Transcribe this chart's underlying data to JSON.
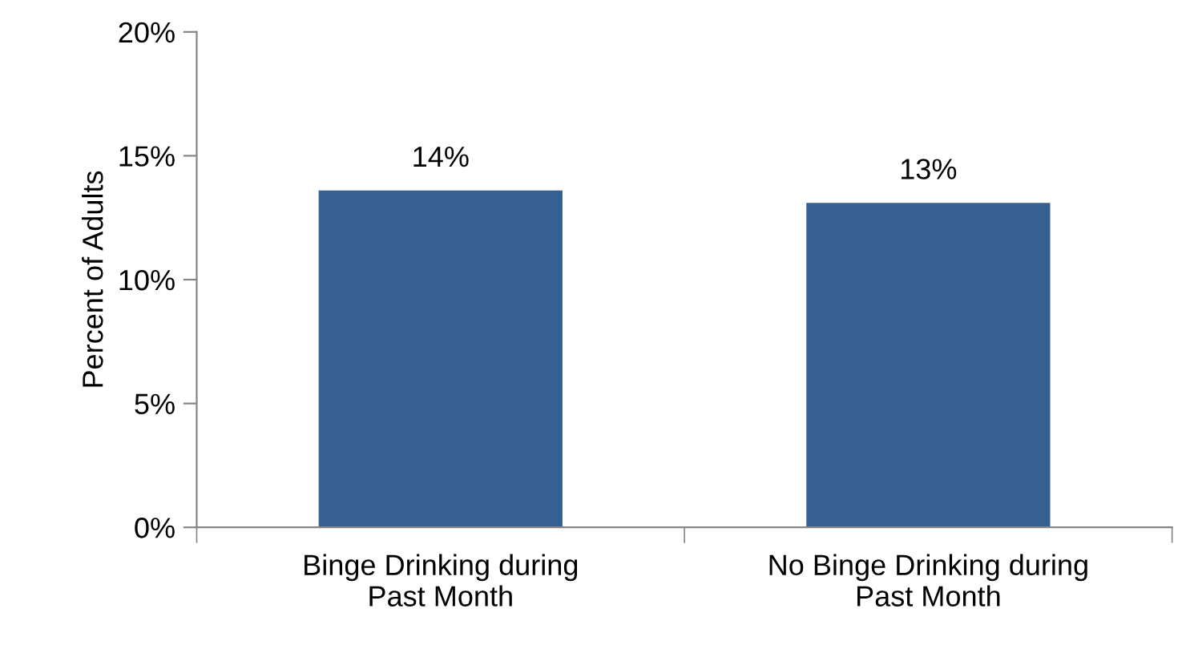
{
  "chart_data": {
    "type": "bar",
    "ylabel": "Percent of Adults",
    "categories": [
      "Binge Drinking during\nPast Month",
      "No Binge Drinking during\nPast Month"
    ],
    "values": [
      13.6,
      13.1
    ],
    "color": "#376092",
    "value_labels": [
      "14%",
      "13%"
    ],
    "ylim": [
      0,
      20
    ],
    "yticks": [
      {
        "value": 0,
        "label": "0%"
      },
      {
        "value": 5,
        "label": "5%"
      },
      {
        "value": 10,
        "label": "10%"
      },
      {
        "value": 15,
        "label": "15%"
      },
      {
        "value": 20,
        "label": "20%"
      }
    ],
    "grid": false,
    "legend": false
  }
}
